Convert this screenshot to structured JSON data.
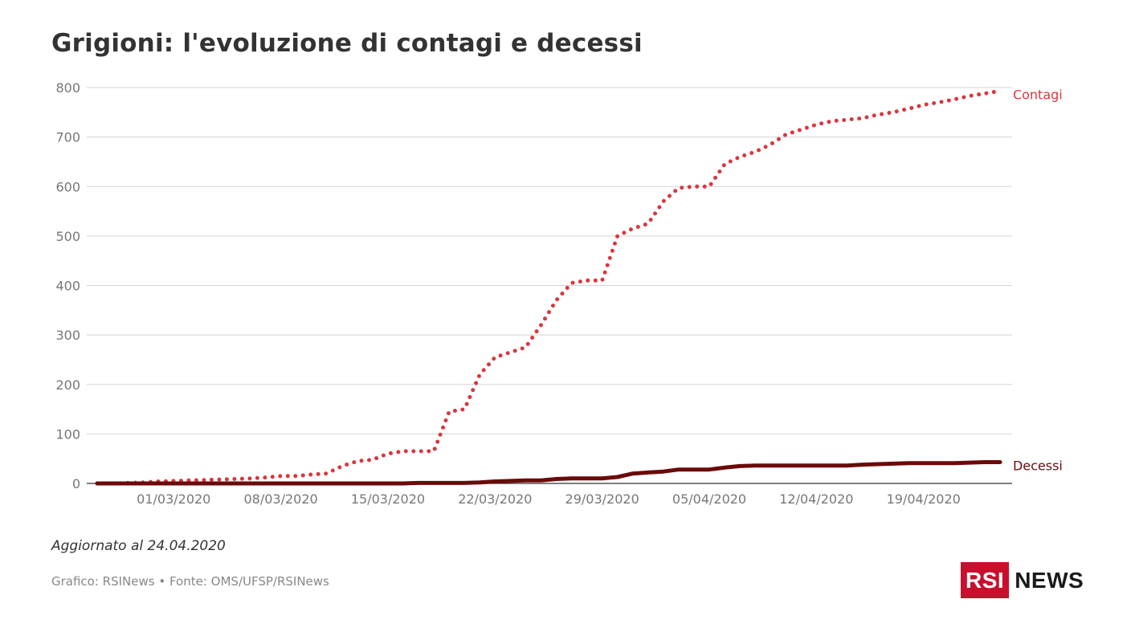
{
  "title": "Grigioni: l'evoluzione di contagi e decessi",
  "updated": "Aggiornato al 24.04.2020",
  "credits": "Grafico: RSINews • Fonte: OMS/UFSP/RSINews",
  "logo": {
    "box": "RSI",
    "text": "NEWS",
    "brand_color": "#c8102e"
  },
  "chart_data": {
    "type": "line",
    "title": "Grigioni: l'evoluzione di contagi e decessi",
    "xlabel": "",
    "ylabel": "",
    "ylim": [
      0,
      800
    ],
    "yticks": [
      0,
      100,
      200,
      300,
      400,
      500,
      600,
      700,
      800
    ],
    "grid": true,
    "legend": "inline labels at line ends",
    "x_tick_labels": [
      {
        "x": "01/03/2020",
        "label": "01/03/2020"
      },
      {
        "x": "08/03/2020",
        "label": "08/03/2020"
      },
      {
        "x": "15/03/2020",
        "label": "15/03/2020"
      },
      {
        "x": "22/03/2020",
        "label": "22/03/2020"
      },
      {
        "x": "29/03/2020",
        "label": "29/03/2020"
      },
      {
        "x": "05/04/2020",
        "label": "05/04/2020"
      },
      {
        "x": "12/04/2020",
        "label": "12/04/2020"
      },
      {
        "x": "19/04/2020",
        "label": "19/04/2020"
      }
    ],
    "x": [
      "25/02/2020",
      "26/02/2020",
      "27/02/2020",
      "28/02/2020",
      "29/02/2020",
      "01/03/2020",
      "02/03/2020",
      "03/03/2020",
      "04/03/2020",
      "05/03/2020",
      "06/03/2020",
      "07/03/2020",
      "08/03/2020",
      "09/03/2020",
      "10/03/2020",
      "11/03/2020",
      "12/03/2020",
      "13/03/2020",
      "14/03/2020",
      "15/03/2020",
      "16/03/2020",
      "17/03/2020",
      "18/03/2020",
      "19/03/2020",
      "20/03/2020",
      "21/03/2020",
      "22/03/2020",
      "23/03/2020",
      "24/03/2020",
      "25/03/2020",
      "26/03/2020",
      "27/03/2020",
      "28/03/2020",
      "29/03/2020",
      "30/03/2020",
      "31/03/2020",
      "01/04/2020",
      "02/04/2020",
      "03/04/2020",
      "04/04/2020",
      "05/04/2020",
      "06/04/2020",
      "07/04/2020",
      "08/04/2020",
      "09/04/2020",
      "10/04/2020",
      "11/04/2020",
      "12/04/2020",
      "13/04/2020",
      "14/04/2020",
      "15/04/2020",
      "16/04/2020",
      "17/04/2020",
      "18/04/2020",
      "19/04/2020",
      "20/04/2020",
      "21/04/2020",
      "22/04/2020",
      "23/04/2020",
      "24/04/2020"
    ],
    "series": [
      {
        "name": "Contagi",
        "color": "#d9363e",
        "style": "dotted",
        "values": [
          0,
          0,
          1,
          2,
          4,
          5,
          6,
          7,
          8,
          9,
          10,
          12,
          15,
          15,
          18,
          20,
          35,
          45,
          48,
          60,
          65,
          65,
          65,
          145,
          150,
          220,
          255,
          265,
          275,
          320,
          370,
          405,
          410,
          410,
          500,
          515,
          525,
          570,
          597,
          600,
          600,
          645,
          660,
          670,
          685,
          705,
          715,
          725,
          732,
          735,
          738,
          745,
          750,
          757,
          765,
          770,
          776,
          783,
          788,
          793
        ]
      },
      {
        "name": "Decessi",
        "color": "#6b0a0a",
        "style": "solid",
        "values": [
          0,
          0,
          0,
          0,
          0,
          0,
          0,
          0,
          0,
          0,
          0,
          0,
          0,
          0,
          0,
          0,
          0,
          0,
          0,
          0,
          0,
          1,
          1,
          1,
          1,
          2,
          4,
          5,
          6,
          6,
          9,
          10,
          10,
          10,
          13,
          20,
          22,
          24,
          28,
          28,
          28,
          32,
          35,
          36,
          36,
          36,
          36,
          36,
          36,
          36,
          38,
          39,
          40,
          41,
          41,
          41,
          41,
          42,
          43,
          43
        ]
      }
    ]
  }
}
